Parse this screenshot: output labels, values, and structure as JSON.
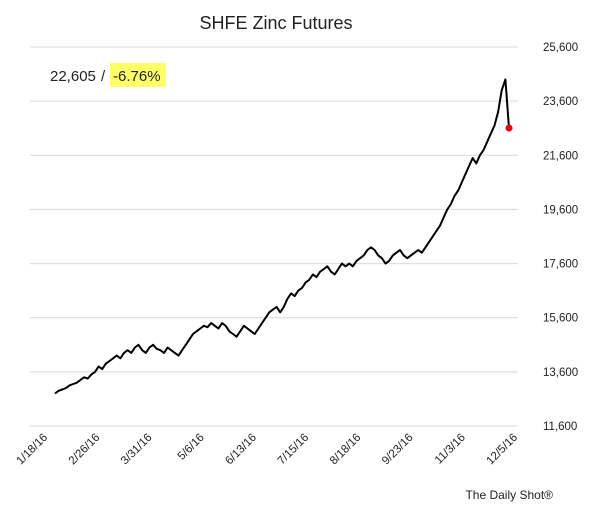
{
  "chart_data": {
    "type": "line",
    "title": "SHFE Zinc Futures",
    "xlabel": "",
    "ylabel": "",
    "ylim": [
      11600,
      25600
    ],
    "y_ticks": [
      "25,600",
      "23,600",
      "21,600",
      "19,600",
      "17,600",
      "15,600",
      "13,600",
      "11,600"
    ],
    "y_tick_values": [
      25600,
      23600,
      21600,
      19600,
      17600,
      15600,
      13600,
      11600
    ],
    "x_ticks": [
      "1/18/16",
      "2/26/16",
      "3/31/16",
      "5/6/16",
      "6/13/16",
      "7/15/16",
      "8/18/16",
      "9/23/16",
      "11/3/16",
      "12/5/16"
    ],
    "grid": true,
    "legend": "none",
    "colors": {
      "line": "#000000",
      "last_point": "#e8000b",
      "highlight": "#ffff66"
    },
    "series": [
      {
        "values": [
          12800,
          12900,
          12950,
          13000,
          13100,
          13150,
          13200,
          13300,
          13400,
          13350,
          13500,
          13600,
          13800,
          13700,
          13900,
          14000,
          14100,
          14200,
          14100,
          14300,
          14400,
          14300,
          14500,
          14600,
          14400,
          14300,
          14500,
          14600,
          14450,
          14400,
          14300,
          14500,
          14400,
          14300,
          14200,
          14400,
          14600,
          14800,
          15000,
          15100,
          15200,
          15300,
          15250,
          15400,
          15300,
          15200,
          15400,
          15300,
          15100,
          15000,
          14900,
          15100,
          15300,
          15200,
          15100,
          15000,
          15200,
          15400,
          15600,
          15800,
          15900,
          16000,
          15800,
          16000,
          16300,
          16500,
          16400,
          16600,
          16700,
          16900,
          17000,
          17200,
          17100,
          17300,
          17400,
          17500,
          17300,
          17200,
          17400,
          17600,
          17500,
          17600,
          17500,
          17700,
          17800,
          17900,
          18100,
          18200,
          18100,
          17900,
          17800,
          17600,
          17700,
          17900,
          18000,
          18100,
          17900,
          17800,
          17900,
          18000,
          18100,
          18000,
          18200,
          18400,
          18600,
          18800,
          19000,
          19300,
          19600,
          19800,
          20100,
          20300,
          20600,
          20900,
          21200,
          21500,
          21300,
          21600,
          21800,
          22100,
          22400,
          22700,
          23200,
          24000,
          24400,
          22605
        ]
      }
    ],
    "last_point": {
      "value": 22605,
      "label": "22,605",
      "change": "-6.76%"
    },
    "separator": "/"
  },
  "credit": "The Daily Shot®"
}
